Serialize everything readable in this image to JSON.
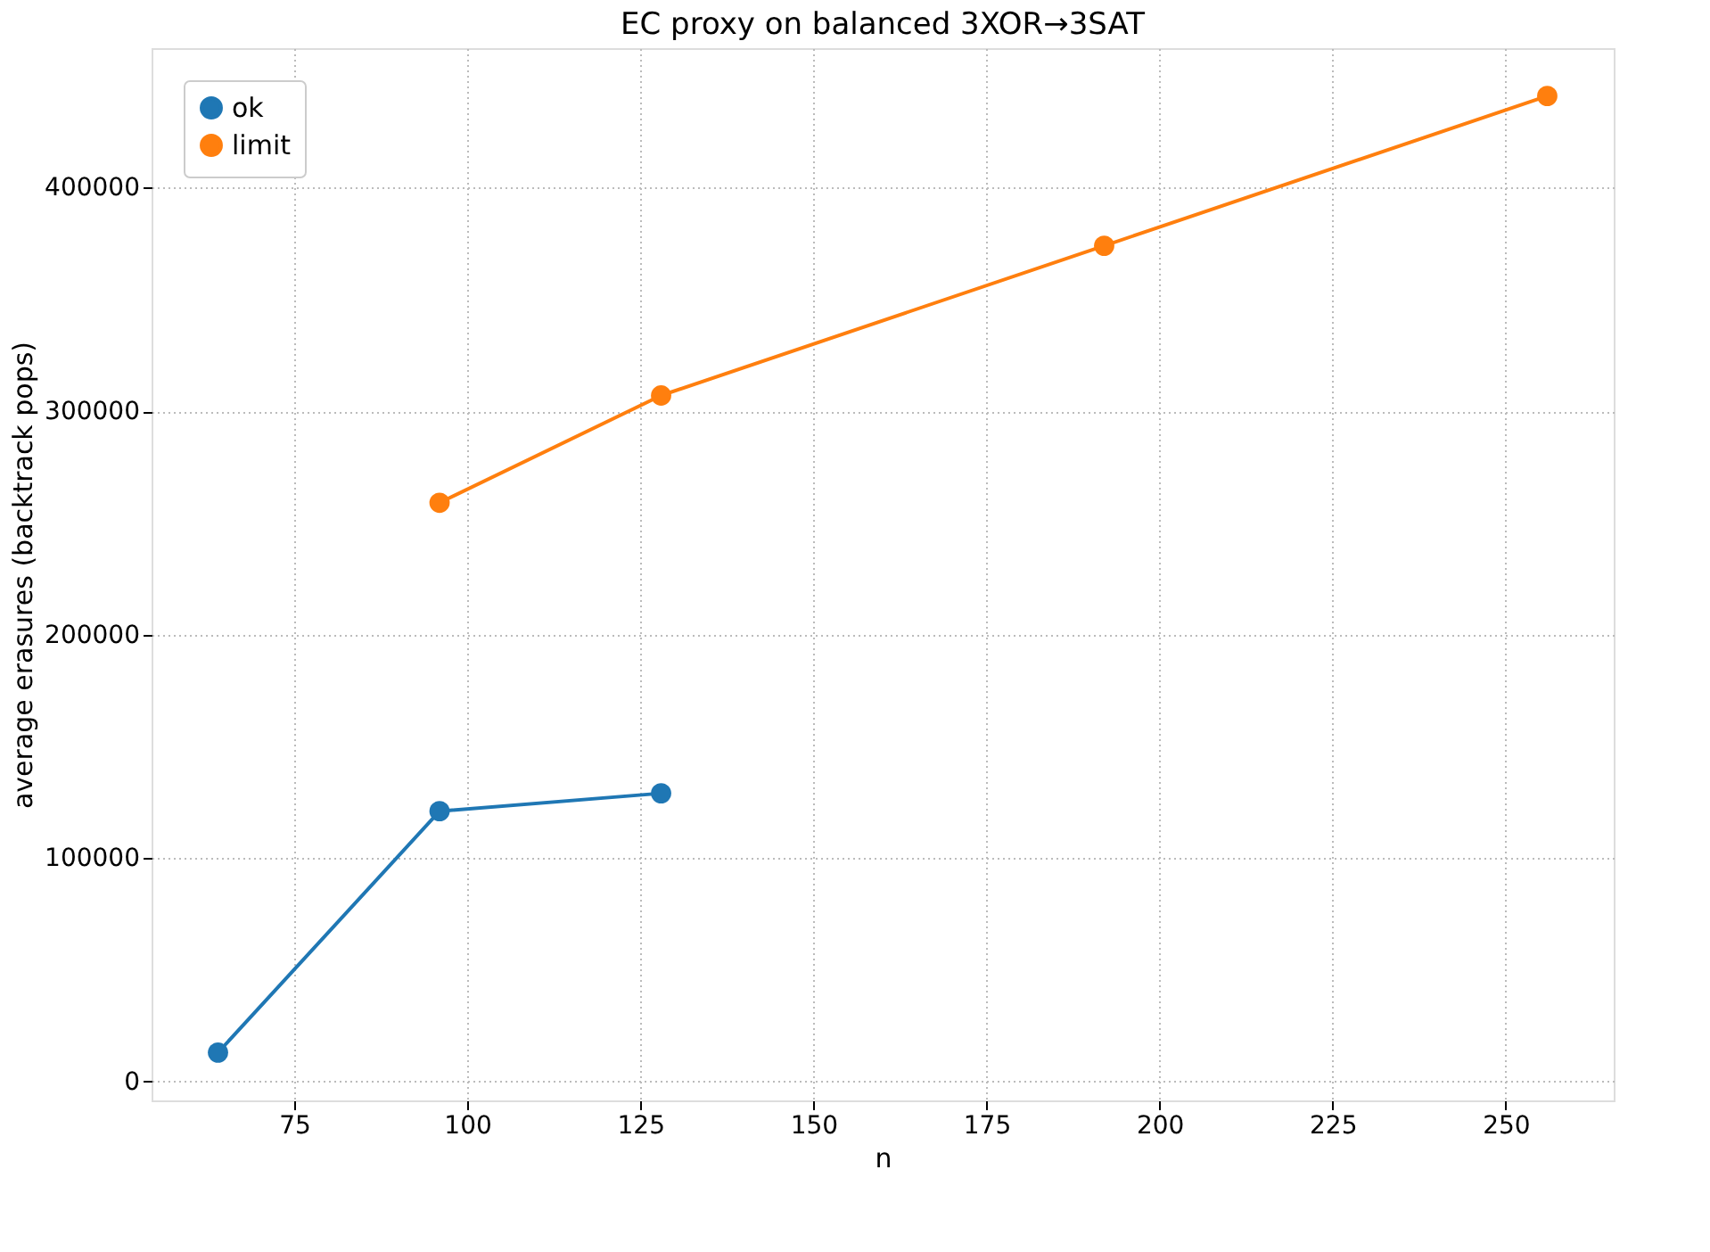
{
  "chart_data": {
    "type": "line",
    "title": "EC proxy on balanced 3XOR→3SAT",
    "xlabel": "n",
    "ylabel": "average erasures (backtrack pops)",
    "series": [
      {
        "name": "ok",
        "color": "#1f77b4",
        "x": [
          64,
          96,
          128
        ],
        "values": [
          13000,
          121000,
          129000
        ]
      },
      {
        "name": "limit",
        "color": "#ff7f0e",
        "x": [
          96,
          128,
          192,
          256
        ],
        "values": [
          259000,
          307000,
          374000,
          441000
        ]
      }
    ],
    "xlim": [
      54.4,
      265.6
    ],
    "xticks": [
      75,
      100,
      125,
      150,
      175,
      200,
      225,
      250
    ],
    "ylim": [
      -8400,
      462400
    ],
    "yticks": [
      0,
      100000,
      200000,
      300000,
      400000
    ],
    "grid": true,
    "legend": "top left",
    "marker": "circle",
    "line_style": "solid"
  }
}
